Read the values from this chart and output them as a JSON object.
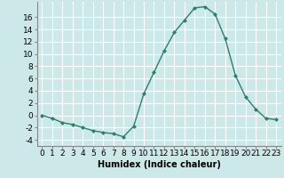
{
  "x": [
    0,
    1,
    2,
    3,
    4,
    5,
    6,
    7,
    8,
    9,
    10,
    11,
    12,
    13,
    14,
    15,
    16,
    17,
    18,
    19,
    20,
    21,
    22,
    23
  ],
  "y": [
    0,
    -0.5,
    -1.2,
    -1.5,
    -2.0,
    -2.5,
    -2.8,
    -3.0,
    -3.5,
    -1.8,
    3.5,
    7.0,
    10.5,
    13.5,
    15.5,
    17.5,
    17.7,
    16.5,
    12.5,
    6.5,
    3.0,
    1.0,
    -0.5,
    -0.7
  ],
  "line_color": "#2e7d6e",
  "marker": "D",
  "marker_size": 2,
  "bg_color": "#cce8e8",
  "grid_color": "#ffffff",
  "xlabel": "Humidex (Indice chaleur)",
  "xlim": [
    -0.5,
    23.5
  ],
  "ylim": [
    -5,
    18.5
  ],
  "yticks": [
    -4,
    -2,
    0,
    2,
    4,
    6,
    8,
    10,
    12,
    14,
    16
  ],
  "xticks": [
    0,
    1,
    2,
    3,
    4,
    5,
    6,
    7,
    8,
    9,
    10,
    11,
    12,
    13,
    14,
    15,
    16,
    17,
    18,
    19,
    20,
    21,
    22,
    23
  ],
  "label_fontsize": 7,
  "tick_fontsize": 6.5
}
